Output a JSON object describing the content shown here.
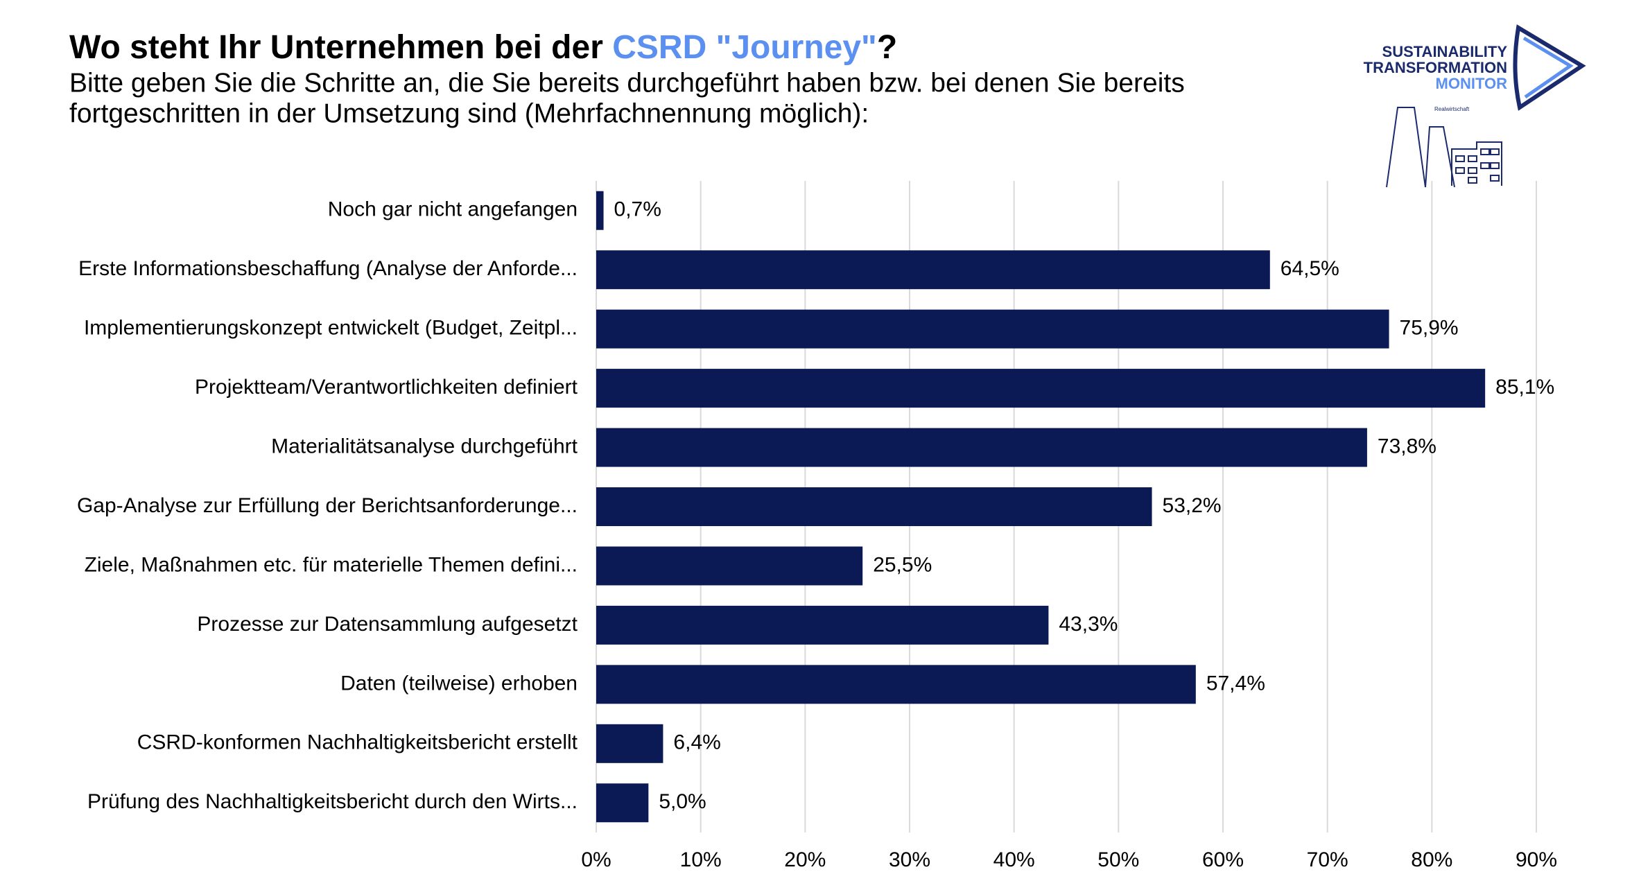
{
  "chart_data": {
    "type": "bar",
    "orientation": "horizontal",
    "title_parts": [
      {
        "text": "Wo steht Ihr Unternehmen bei der ",
        "color": "#000000"
      },
      {
        "text": "CSRD \"Journey\"",
        "color": "#5b8ff0"
      },
      {
        "text": "?",
        "color": "#000000"
      }
    ],
    "subtitle_lines": [
      "Bitte geben Sie die Schritte an, die Sie bereits durchgeführt haben bzw. bei denen Sie bereits",
      "fortgeschritten in der Umsetzung sind (Mehrfachnennung möglich):"
    ],
    "logo": {
      "lines": [
        "SUSTAINABILITY",
        "TRANSFORMATION",
        "MONITOR"
      ],
      "tagline": "Realwirtschaft"
    },
    "categories": [
      "Noch gar nicht angefangen",
      "Erste Informationsbeschaffung (Analyse der Anforde...",
      "Implementierungskonzept entwickelt (Budget, Zeitpl...",
      "Projektteam/Verantwortlichkeiten definiert",
      "Materialitätsanalyse durchgeführt",
      "Gap-Analyse zur Erfüllung der Berichtsanforderunge...",
      "Ziele, Maßnahmen etc. für materielle Themen defini...",
      "Prozesse zur Datensammlung aufgesetzt",
      "Daten (teilweise) erhoben",
      "CSRD-konformen Nachhaltigkeitsbericht erstellt",
      "Prüfung des Nachhaltigkeitsbericht durch den Wirts..."
    ],
    "values": [
      0.7,
      64.5,
      75.9,
      85.1,
      73.8,
      53.2,
      25.5,
      43.3,
      57.4,
      6.4,
      5.0
    ],
    "value_labels": [
      "0,7%",
      "64,5%",
      "75,9%",
      "85,1%",
      "73,8%",
      "53,2%",
      "25,5%",
      "43,3%",
      "57,4%",
      "6,4%",
      "5,0%"
    ],
    "color": "#0b1a55",
    "xlim": [
      0,
      90
    ],
    "xticks": [
      {
        "value": 0,
        "label": "0%"
      },
      {
        "value": 10,
        "label": "10%"
      },
      {
        "value": 20,
        "label": "20%"
      },
      {
        "value": 30,
        "label": "30%"
      },
      {
        "value": 40,
        "label": "40%"
      },
      {
        "value": 50,
        "label": "50%"
      },
      {
        "value": 60,
        "label": "60%"
      },
      {
        "value": 70,
        "label": "70%"
      },
      {
        "value": 80,
        "label": "80%"
      },
      {
        "value": 90,
        "label": "90%"
      }
    ],
    "grid": true
  }
}
